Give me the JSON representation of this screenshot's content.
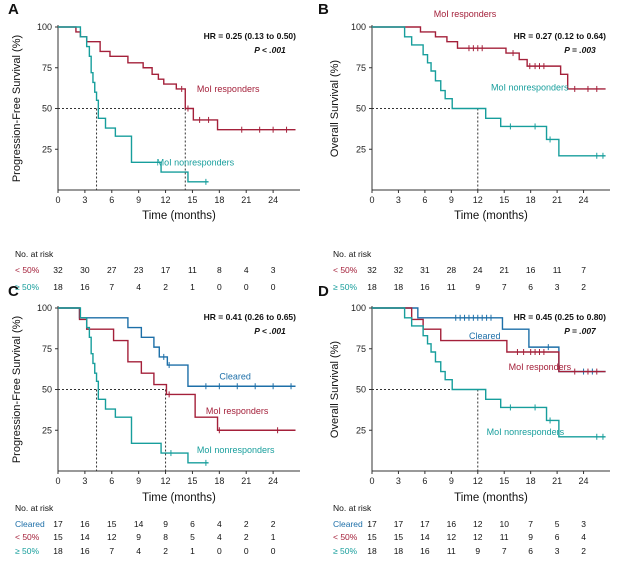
{
  "chart_data": [
    {
      "panel": "A",
      "type": "line",
      "title": "",
      "ylabel": "Progression-Free Survival (%)",
      "xlabel": "Time (months)",
      "xlim": [
        0,
        27
      ],
      "ylim": [
        0,
        100
      ],
      "xticks": [
        0,
        3,
        6,
        9,
        12,
        15,
        18,
        21,
        24
      ],
      "yticks": [
        25,
        50,
        75,
        100
      ],
      "hr_text": "HR = 0.25 (0.13 to 0.50)",
      "p_text": "P < .001",
      "medians": [
        4.3,
        14.2
      ],
      "series": [
        {
          "name": "MoI responders",
          "color": "#a4203a",
          "label_at": [
            15.5,
            60
          ],
          "x": [
            0,
            2,
            2.5,
            3.2,
            4.7,
            5.8,
            7.8,
            9.5,
            10.5,
            11.2,
            11.8,
            13.2,
            14.2,
            15.1,
            17.8,
            26.5
          ],
          "y": [
            100,
            97,
            94,
            91,
            85,
            82,
            78,
            75,
            71,
            68,
            65,
            62,
            50,
            43,
            37,
            37
          ],
          "censor_x": [
            13.8,
            14.5,
            15.8,
            16.8,
            20.5,
            22.5,
            24,
            25.5
          ]
        },
        {
          "name": "MoI nonresponders",
          "color": "#179e9c",
          "label_at": [
            11,
            15
          ],
          "x": [
            0,
            2.5,
            3.2,
            3.5,
            3.7,
            3.9,
            4.1,
            4.3,
            4.5,
            5.3,
            6.4,
            8.2,
            11.5,
            14.5,
            16.8
          ],
          "y": [
            100,
            94,
            88,
            82,
            72,
            66,
            60,
            55,
            44,
            38,
            33,
            17,
            11,
            5,
            5
          ],
          "censor_x": [
            16.5
          ]
        }
      ],
      "risk_table": {
        "title": "No. at risk",
        "columns": [
          0,
          3,
          6,
          9,
          12,
          15,
          18,
          21,
          24
        ],
        "rows": [
          {
            "label": "< 50%",
            "color": "#a4203a",
            "values": [
              "32",
              "30",
              "27",
              "23",
              "17",
              "11",
              "8",
              "4",
              "3"
            ]
          },
          {
            "label": "≥ 50%",
            "color": "#179e9c",
            "values": [
              "18",
              "16",
              "7",
              "4",
              "2",
              "1",
              "0",
              "0",
              "0"
            ]
          }
        ]
      }
    },
    {
      "panel": "B",
      "type": "line",
      "title": "",
      "ylabel": "Overall Survival (%)",
      "xlabel": "Time (months)",
      "xlim": [
        0,
        27
      ],
      "ylim": [
        0,
        100
      ],
      "xticks": [
        0,
        3,
        6,
        9,
        12,
        15,
        18,
        21,
        24
      ],
      "yticks": [
        25,
        50,
        75,
        100
      ],
      "hr_text": "HR = 0.27 (0.12 to 0.64)",
      "p_text": "P = .003",
      "medians": [
        12
      ],
      "series": [
        {
          "name": "MoI responders",
          "color": "#a4203a",
          "label_at": [
            7,
            106
          ],
          "x": [
            0,
            5.5,
            7.2,
            8.5,
            9.7,
            15.2,
            16.7,
            17.6,
            21.4,
            22.2,
            26.5
          ],
          "y": [
            100,
            97,
            94,
            91,
            87,
            84,
            80,
            76,
            71,
            62,
            62
          ],
          "censor_x": [
            11,
            11.5,
            12,
            12.5,
            16,
            17.9,
            18.5,
            19,
            19.5,
            23,
            24.5,
            25.5
          ]
        },
        {
          "name": "MoI nonresponders",
          "color": "#179e9c",
          "label_at": [
            13.5,
            61
          ],
          "x": [
            0,
            3.7,
            4.5,
            5.8,
            6.3,
            6.7,
            7.2,
            7.8,
            8.3,
            9.1,
            10.7,
            12.9,
            14.6,
            19.8,
            21.2,
            26.5
          ],
          "y": [
            100,
            94,
            89,
            83,
            78,
            73,
            67,
            61,
            56,
            50,
            50,
            44,
            39,
            31,
            21,
            21
          ],
          "censor_x": [
            15.7,
            18.5,
            20.2,
            25.5,
            26.2
          ]
        }
      ],
      "risk_table": {
        "title": "No. at risk",
        "columns": [
          0,
          3,
          6,
          9,
          12,
          15,
          18,
          21,
          24
        ],
        "rows": [
          {
            "label": "< 50%",
            "color": "#a4203a",
            "values": [
              "32",
              "32",
              "31",
              "28",
              "24",
              "21",
              "16",
              "11",
              "7"
            ]
          },
          {
            "label": "≥ 50%",
            "color": "#179e9c",
            "values": [
              "18",
              "18",
              "16",
              "11",
              "9",
              "7",
              "6",
              "3",
              "2"
            ]
          }
        ]
      }
    },
    {
      "panel": "C",
      "type": "line",
      "title": "",
      "ylabel": "Progression-Free Survival (%)",
      "xlabel": "Time (months)",
      "xlim": [
        0,
        27
      ],
      "ylim": [
        0,
        100
      ],
      "xticks": [
        0,
        3,
        6,
        9,
        12,
        15,
        18,
        21,
        24
      ],
      "yticks": [
        25,
        50,
        75,
        100
      ],
      "hr_text": "HR = 0.41 (0.26 to 0.65)",
      "p_text": "P < .001",
      "medians": [
        4.3,
        12
      ],
      "series": [
        {
          "name": "Cleared",
          "color": "#1d6fa8",
          "label_at": [
            18,
            56
          ],
          "x": [
            0,
            2.4,
            3.2,
            7.8,
            9.3,
            10.7,
            11.3,
            12.2,
            14.5,
            26.5
          ],
          "y": [
            100,
            94,
            94,
            88,
            82,
            76,
            70,
            65,
            52,
            52
          ],
          "censor_x": [
            11.8,
            12.4,
            16.5,
            18,
            20,
            22,
            24,
            26
          ]
        },
        {
          "name": "MoI responders",
          "color": "#a4203a",
          "label_at": [
            16.5,
            35
          ],
          "x": [
            0,
            2.4,
            3.2,
            6.2,
            7.8,
            9.3,
            10.7,
            12.1,
            15.3,
            17.8,
            26.5
          ],
          "y": [
            100,
            93,
            87,
            80,
            67,
            60,
            53,
            47,
            33,
            25,
            25
          ],
          "censor_x": [
            12.4,
            18,
            24.5
          ]
        },
        {
          "name": "MoI nonresponders",
          "color": "#179e9c",
          "label_at": [
            15.5,
            11
          ],
          "x": [
            0,
            2.5,
            3.2,
            3.5,
            3.7,
            3.9,
            4.1,
            4.3,
            4.5,
            5.3,
            6.4,
            8.2,
            11.5,
            14.5,
            16.8
          ],
          "y": [
            100,
            94,
            88,
            82,
            72,
            66,
            60,
            55,
            44,
            38,
            33,
            17,
            11,
            5,
            5
          ],
          "censor_x": [
            12.6,
            16.5
          ]
        }
      ],
      "risk_table": {
        "title": "No. at risk",
        "columns": [
          0,
          3,
          6,
          9,
          12,
          15,
          18,
          21,
          24
        ],
        "rows": [
          {
            "label": "Cleared",
            "color": "#1d6fa8",
            "values": [
              "17",
              "16",
              "15",
              "14",
              "9",
              "6",
              "4",
              "2",
              "2"
            ]
          },
          {
            "label": "< 50%",
            "color": "#a4203a",
            "values": [
              "15",
              "14",
              "12",
              "9",
              "8",
              "5",
              "4",
              "2",
              "1"
            ]
          },
          {
            "label": "≥ 50%",
            "color": "#179e9c",
            "values": [
              "18",
              "16",
              "7",
              "4",
              "2",
              "1",
              "0",
              "0",
              "0"
            ]
          }
        ]
      }
    },
    {
      "panel": "D",
      "type": "line",
      "title": "",
      "ylabel": "Overall Survival (%)",
      "xlabel": "Time (months)",
      "xlim": [
        0,
        27
      ],
      "ylim": [
        0,
        100
      ],
      "xticks": [
        0,
        3,
        6,
        9,
        12,
        15,
        18,
        21,
        24
      ],
      "yticks": [
        25,
        50,
        75,
        100
      ],
      "hr_text": "HR = 0.45 (0.25 to 0.80)",
      "p_text": "P = .007",
      "medians": [
        12
      ],
      "series": [
        {
          "name": "Cleared",
          "color": "#1d6fa8",
          "label_at": [
            11,
            81
          ],
          "x": [
            0,
            5.2,
            14.8,
            17.8,
            21.2,
            26.5
          ],
          "y": [
            100,
            94,
            87,
            76,
            61,
            61
          ],
          "censor_x": [
            9.5,
            10,
            10.5,
            11,
            11.5,
            12,
            12.5,
            13,
            13.5,
            20,
            24,
            25
          ]
        },
        {
          "name": "MoI responders",
          "color": "#a4203a",
          "label_at": [
            15.5,
            62
          ],
          "x": [
            0,
            4.5,
            5.8,
            7.2,
            7.8,
            15.3,
            21.2,
            26.5
          ],
          "y": [
            100,
            93,
            87,
            87,
            80,
            73,
            61,
            61
          ],
          "censor_x": [
            16.5,
            17.2,
            18,
            18.5,
            19,
            19.5,
            23,
            24.5,
            25.5
          ]
        },
        {
          "name": "MoI nonresponders",
          "color": "#179e9c",
          "label_at": [
            13,
            22
          ],
          "x": [
            0,
            3.7,
            4.5,
            5.8,
            6.3,
            6.7,
            7.2,
            7.8,
            8.3,
            9.1,
            10.7,
            12.9,
            14.6,
            19.8,
            21.2,
            26.5
          ],
          "y": [
            100,
            94,
            89,
            83,
            78,
            73,
            67,
            61,
            56,
            50,
            50,
            44,
            39,
            31,
            21,
            21
          ],
          "censor_x": [
            15.7,
            18.5,
            20.2,
            25.5,
            26.2
          ]
        }
      ],
      "risk_table": {
        "title": "No. at risk",
        "columns": [
          0,
          3,
          6,
          9,
          12,
          15,
          18,
          21,
          24
        ],
        "rows": [
          {
            "label": "Cleared",
            "color": "#1d6fa8",
            "values": [
              "17",
              "17",
              "17",
              "16",
              "12",
              "10",
              "7",
              "5",
              "3"
            ]
          },
          {
            "label": "< 50%",
            "color": "#a4203a",
            "values": [
              "15",
              "15",
              "14",
              "12",
              "12",
              "11",
              "9",
              "6",
              "4"
            ]
          },
          {
            "label": "≥ 50%",
            "color": "#179e9c",
            "values": [
              "18",
              "18",
              "16",
              "11",
              "9",
              "7",
              "6",
              "3",
              "2"
            ]
          }
        ]
      }
    }
  ]
}
